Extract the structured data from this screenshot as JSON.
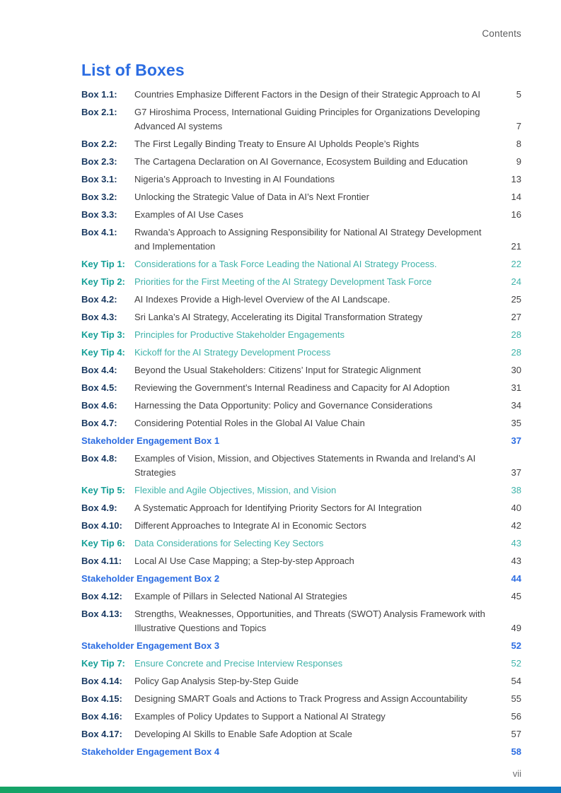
{
  "header": {
    "contents_label": "Contents"
  },
  "title": "List of Boxes",
  "footer": {
    "page_number": "vii"
  },
  "colors": {
    "accent_blue": "#2b6ce2",
    "navy_label": "#17375f",
    "body_text": "#414042",
    "teal_label": "#149e96",
    "teal_text": "#3fb3aa",
    "header_gray": "#5b5c5e",
    "footer_gray": "#6d6e71",
    "gradient_green": "#15a362",
    "gradient_teal": "#0ca09e",
    "gradient_blue": "#0d78c0"
  },
  "entries": [
    {
      "type": "box",
      "label": "Box 1.1:",
      "title": "Countries Emphasize Different Factors in the Design of their Strategic Approach to AI",
      "page": "5"
    },
    {
      "type": "box",
      "label": "Box 2.1:",
      "title": "G7 Hiroshima Process, International Guiding Principles for Organizations Developing Advanced AI systems",
      "page": "7"
    },
    {
      "type": "box",
      "label": "Box 2.2:",
      "title": "The First Legally Binding Treaty to Ensure AI Upholds People’s Rights",
      "page": "8"
    },
    {
      "type": "box",
      "label": "Box 2.3:",
      "title": "The Cartagena Declaration on AI Governance, Ecosystem Building and Education",
      "page": "9"
    },
    {
      "type": "box",
      "label": "Box 3.1:",
      "title": "Nigeria’s Approach to Investing in AI Foundations",
      "page": "13"
    },
    {
      "type": "box",
      "label": "Box 3.2:",
      "title": "Unlocking the Strategic Value of Data in AI’s Next Frontier",
      "page": "14"
    },
    {
      "type": "box",
      "label": "Box 3.3:",
      "title": "Examples of AI Use Cases",
      "page": "16"
    },
    {
      "type": "box",
      "label": "Box 4.1:",
      "title": "Rwanda’s Approach to Assigning Responsibility for National AI Strategy Development and Implementation",
      "page": "21"
    },
    {
      "type": "keytip",
      "label": "Key Tip 1:",
      "title": "Considerations for a Task Force Leading the National AI Strategy Process.",
      "page": "22"
    },
    {
      "type": "keytip",
      "label": "Key Tip 2:",
      "title": "Priorities for the First Meeting of the AI Strategy Development Task Force",
      "page": "24"
    },
    {
      "type": "box",
      "label": "Box 4.2:",
      "title": "AI Indexes Provide a High-level Overview of the AI Landscape.",
      "page": "25"
    },
    {
      "type": "box",
      "label": "Box 4.3:",
      "title": "Sri Lanka’s AI Strategy, Accelerating its Digital Transformation Strategy",
      "page": "27"
    },
    {
      "type": "keytip",
      "label": "Key Tip 3:",
      "title": "Principles for Productive Stakeholder Engagements",
      "page": "28"
    },
    {
      "type": "keytip",
      "label": "Key Tip 4:",
      "title": "Kickoff for the AI Strategy Development Process",
      "page": "28"
    },
    {
      "type": "box",
      "label": "Box 4.4:",
      "title": "Beyond the Usual Stakeholders: Citizens’ Input for Strategic Alignment",
      "page": "30"
    },
    {
      "type": "box",
      "label": "Box 4.5:",
      "title": "Reviewing the Government’s Internal Readiness and Capacity for AI Adoption",
      "page": "31"
    },
    {
      "type": "box",
      "label": "Box 4.6:",
      "title": "Harnessing the Data Opportunity: Policy and Governance Considerations",
      "page": "34"
    },
    {
      "type": "box",
      "label": "Box 4.7:",
      "title": "Considering Potential Roles in the Global AI Value Chain",
      "page": "35"
    },
    {
      "type": "stakeholder",
      "label": "Stakeholder Engagement Box 1",
      "title": "",
      "page": "37"
    },
    {
      "type": "box",
      "label": "Box 4.8:",
      "title": "Examples of Vision, Mission, and Objectives Statements in Rwanda and Ireland’s AI Strategies",
      "page": "37"
    },
    {
      "type": "keytip",
      "label": "Key Tip 5:",
      "title": "Flexible and Agile Objectives, Mission, and Vision",
      "page": "38"
    },
    {
      "type": "box",
      "label": "Box 4.9:",
      "title": "A Systematic Approach for Identifying Priority Sectors for AI Integration",
      "page": "40"
    },
    {
      "type": "box",
      "label": "Box 4.10:",
      "title": "Different Approaches to Integrate AI in Economic Sectors",
      "page": "42"
    },
    {
      "type": "keytip",
      "label": "Key Tip 6:",
      "title": "Data Considerations for Selecting Key Sectors",
      "page": "43"
    },
    {
      "type": "box",
      "label": "Box 4.11:",
      "title": "Local AI Use Case Mapping; a Step-by-step Approach",
      "page": "43"
    },
    {
      "type": "stakeholder",
      "label": "Stakeholder Engagement Box 2",
      "title": "",
      "page": "44"
    },
    {
      "type": "box",
      "label": "Box 4.12:",
      "title": "Example of Pillars in Selected National AI Strategies",
      "page": "45"
    },
    {
      "type": "box",
      "label": "Box 4.13:",
      "title": "Strengths, Weaknesses, Opportunities, and Threats (SWOT) Analysis Framework with Illustrative Questions and Topics",
      "page": "49"
    },
    {
      "type": "stakeholder",
      "label": "Stakeholder Engagement Box 3",
      "title": "",
      "page": "52"
    },
    {
      "type": "keytip",
      "label": "Key Tip 7:",
      "title": "Ensure Concrete and Precise Interview Responses",
      "page": "52"
    },
    {
      "type": "box",
      "label": "Box 4.14:",
      "title": "Policy Gap Analysis Step-by-Step Guide",
      "page": "54"
    },
    {
      "type": "box",
      "label": "Box 4.15:",
      "title": "Designing SMART Goals and Actions to Track Progress and Assign Accountability",
      "page": "55"
    },
    {
      "type": "box",
      "label": "Box 4.16:",
      "title": "Examples of Policy Updates to Support a National AI Strategy",
      "page": "56"
    },
    {
      "type": "box",
      "label": "Box 4.17:",
      "title": "Developing AI Skills to Enable Safe Adoption at Scale",
      "page": "57"
    },
    {
      "type": "stakeholder",
      "label": "Stakeholder Engagement Box 4",
      "title": "",
      "page": "58"
    }
  ]
}
